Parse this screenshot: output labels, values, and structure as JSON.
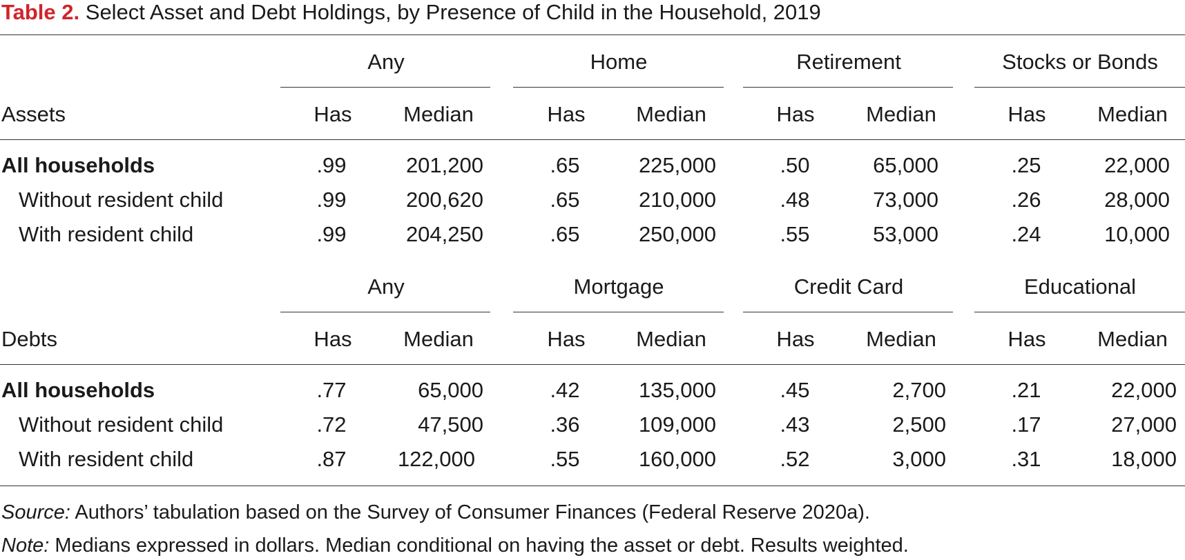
{
  "title": {
    "label": "Table 2.",
    "text": "Select Asset and Debt Holdings, by Presence of Child in the Household, 2019"
  },
  "assets": {
    "section_label": "Assets",
    "groups": [
      "Any",
      "Home",
      "Retirement",
      "Stocks or Bonds"
    ],
    "subheaders": {
      "has": "Has",
      "median": "Median"
    },
    "rows": [
      {
        "label": "All households",
        "values": [
          ".99",
          "201,200",
          ".65",
          "225,000",
          ".50",
          "65,000",
          ".25",
          "22,000"
        ]
      },
      {
        "label": "Without resident child",
        "values": [
          ".99",
          "200,620",
          ".65",
          "210,000",
          ".48",
          "73,000",
          ".26",
          "28,000"
        ]
      },
      {
        "label": "With resident child",
        "values": [
          ".99",
          "204,250",
          ".65",
          "250,000",
          ".55",
          "53,000",
          ".24",
          "10,000"
        ]
      }
    ]
  },
  "debts": {
    "section_label": "Debts",
    "groups": [
      "Any",
      "Mortgage",
      "Credit Card",
      "Educational"
    ],
    "subheaders": {
      "has": "Has",
      "median": "Median"
    },
    "rows": [
      {
        "label": "All households",
        "values": [
          ".77",
          "65,000",
          ".42",
          "135,000",
          ".45",
          "2,700",
          ".21",
          "22,000"
        ]
      },
      {
        "label": "Without resident child",
        "values": [
          ".72",
          "47,500",
          ".36",
          "109,000",
          ".43",
          "2,500",
          ".17",
          "27,000"
        ]
      },
      {
        "label": "With resident child",
        "values": [
          ".87",
          "122,000",
          ".55",
          "160,000",
          ".52",
          "3,000",
          ".31",
          "18,000"
        ]
      }
    ]
  },
  "footer": {
    "source_label": "Source:",
    "source_text": " Authors’ tabulation based on the Survey of Consumer Finances (Federal Reserve 2020a).",
    "note_label": "Note:",
    "note_text": " Medians expressed in dollars. Median conditional on having the asset or debt. Results weighted."
  }
}
